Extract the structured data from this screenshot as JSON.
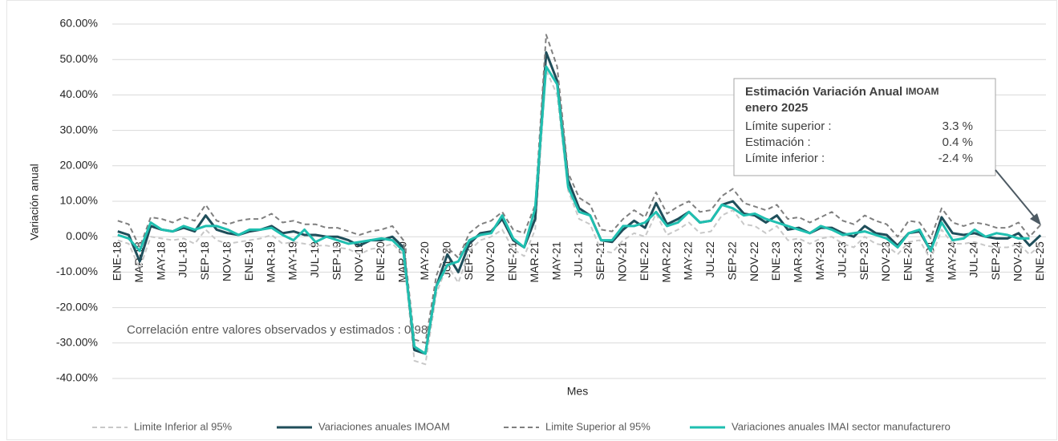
{
  "chart_data": {
    "type": "line",
    "y_label": "Variación anual",
    "x_label": "Mes",
    "categories": [
      "ENE-18",
      null,
      "MAR-18",
      null,
      "MAY-18",
      null,
      "JUL-18",
      null,
      "SEP-18",
      null,
      "NOV-18",
      null,
      "ENE-19",
      null,
      "MAR-19",
      null,
      "MAY-19",
      null,
      "JUL-19",
      null,
      "SEP-19",
      null,
      "NOV-19",
      null,
      "ENE-20",
      null,
      "MAR-20",
      null,
      "MAY-20",
      null,
      "JUL-20",
      null,
      "SEP-20",
      null,
      "NOV-20",
      null,
      "ENE-21",
      null,
      "MAR-21",
      null,
      "MAY-21",
      null,
      "JUL-21",
      null,
      "SEP-21",
      null,
      "NOV-21",
      null,
      "ENE-22",
      null,
      "MAR-22",
      null,
      "MAY-22",
      null,
      "JUL-22",
      null,
      "SEP-22",
      null,
      "NOV-22",
      null,
      "ENE-23",
      null,
      "MAR-23",
      null,
      "MAY-23",
      null,
      "JUL-23",
      null,
      "SEP-23",
      null,
      "NOV-23",
      null,
      "ENE-24",
      null,
      "MAR-24",
      null,
      "MAY-24",
      null,
      "JUL-24",
      null,
      "SEP-24",
      null,
      "NOV-24",
      null,
      "ENE-25"
    ],
    "series": [
      {
        "name": "Limite Inferior al 95%",
        "color": "#c8c8c8",
        "dashed": true,
        "width": 2,
        "values": [
          -1,
          -2,
          -9,
          0,
          -0.5,
          -1,
          -0.5,
          -2,
          2,
          -1,
          -2,
          -1.5,
          -1,
          -0.5,
          0.5,
          -2,
          -1.5,
          -2,
          -2.5,
          -2.5,
          -3,
          -3.5,
          -5,
          -3.5,
          -3,
          -2,
          -5,
          -35,
          -36,
          -16,
          -8,
          -13,
          -4,
          -1,
          0,
          2,
          -3.5,
          -5.5,
          2,
          47,
          40,
          13,
          5,
          3.5,
          -4,
          -4.5,
          -1,
          1,
          0,
          6.5,
          0.5,
          2,
          4,
          1,
          1.5,
          6,
          7.5,
          3.5,
          3,
          1,
          3,
          -1,
          -0.5,
          -2,
          -0.5,
          0,
          -2,
          -3,
          0,
          -2,
          -2.5,
          -5,
          -1.5,
          -1,
          -6.5,
          2,
          -2,
          -2,
          -1.5,
          -2.5,
          -3,
          -3,
          -2,
          -5,
          -2.4
        ]
      },
      {
        "name": "Variaciones anuales IMOAM",
        "color": "#1f4e5a",
        "dashed": false,
        "width": 3,
        "values": [
          1.5,
          0.5,
          -7,
          3,
          2,
          1.5,
          2.5,
          1.5,
          6,
          2,
          1,
          0.5,
          1.5,
          2,
          3,
          1,
          1.5,
          0.5,
          0.5,
          0,
          0,
          -1,
          -2.5,
          -1,
          -1,
          0,
          -3,
          -32,
          -33,
          -14,
          -5,
          -10,
          -2,
          1,
          1.5,
          5,
          -1,
          -3,
          5,
          52,
          44,
          16,
          8,
          6,
          -1,
          -1.5,
          2,
          4.5,
          2.5,
          9.5,
          3.5,
          5,
          7,
          4,
          4.5,
          9,
          10,
          6.5,
          6,
          4,
          6,
          2,
          2.5,
          1,
          2.5,
          2.5,
          1,
          0,
          3,
          1,
          0.5,
          -2.5,
          1,
          1.5,
          -4,
          5.5,
          1,
          0.5,
          1,
          0,
          -0.5,
          -0.5,
          1,
          -2.5,
          0.4
        ]
      },
      {
        "name": "Limite Superior al 95%",
        "color": "#7f7f7f",
        "dashed": true,
        "width": 2,
        "values": [
          4.5,
          3.5,
          -3,
          5.5,
          5,
          4,
          5.5,
          4.5,
          9,
          4.5,
          3.5,
          4.5,
          5,
          5,
          6.5,
          4,
          4.5,
          3.5,
          3.5,
          2.5,
          2.5,
          1.5,
          0.5,
          1.5,
          2,
          3,
          -1,
          -29,
          -30,
          -11,
          -3,
          -6,
          1,
          3.5,
          4.5,
          7,
          2,
          1,
          9,
          57,
          48,
          18,
          11,
          9,
          2,
          1.5,
          5,
          7.5,
          5.5,
          12.5,
          6.5,
          8.5,
          10,
          7,
          7.5,
          11.5,
          13.5,
          9.5,
          8.5,
          7.5,
          9,
          5,
          5.5,
          4,
          5.5,
          7,
          4.5,
          3.5,
          6,
          4.5,
          3.5,
          0,
          4.5,
          4,
          -0.5,
          8,
          4,
          3,
          4,
          3.5,
          2.5,
          2.5,
          4,
          0,
          3.3
        ]
      },
      {
        "name": "Variaciones anuales IMAI sector manufacturero",
        "color": "#1fbfb0",
        "dashed": false,
        "width": 3,
        "values": [
          0.5,
          -0.5,
          -4,
          4,
          2,
          1.5,
          3,
          2,
          3,
          3,
          2,
          0.5,
          2,
          2,
          2.5,
          0.5,
          -1,
          2,
          -1.5,
          0,
          -1,
          -2,
          -1.5,
          -1,
          -0.5,
          -1,
          -4,
          -31,
          -33,
          -14,
          -8,
          -7,
          -1,
          0.5,
          1,
          6,
          -0.5,
          -3,
          8,
          48,
          43,
          14,
          7,
          6,
          -1,
          -1,
          3,
          3,
          4,
          7,
          3,
          4,
          7,
          4,
          4.5,
          9,
          8,
          6,
          6.5,
          5,
          4,
          3,
          2,
          1,
          3,
          2,
          0.5,
          1,
          1.5,
          0.5,
          -0.5,
          -3,
          1,
          2,
          -4,
          4,
          -1,
          -0.5,
          2,
          0,
          1,
          0.5,
          -0.5,
          -0.5,
          null
        ]
      }
    ],
    "ylim": [
      -40,
      60
    ],
    "yticks": [
      {
        "value": -40,
        "label": "-40.00%"
      },
      {
        "value": -30,
        "label": "-30.00%"
      },
      {
        "value": -20,
        "label": "-20.00%"
      },
      {
        "value": -10,
        "label": "-10.00%"
      },
      {
        "value": 0,
        "label": "0.00%"
      },
      {
        "value": 10,
        "label": "10.00%"
      },
      {
        "value": 20,
        "label": "20.00%"
      },
      {
        "value": 30,
        "label": "30.00%"
      },
      {
        "value": 40,
        "label": "40.00%"
      },
      {
        "value": 50,
        "label": "50.00%"
      },
      {
        "value": 60,
        "label": "60.00%"
      }
    ],
    "grid": true,
    "legend": "bottom",
    "correlation_note": "Correlación entre valores observados y estimados :  0.98",
    "annotation": {
      "title": "Estimación Variación Anual",
      "title_sub": "IMOAM",
      "subtitle": "enero 2025",
      "rows": [
        {
          "label": "Límite superior :",
          "value": "3.3 %"
        },
        {
          "label": "Estimación :",
          "value": "0.4 %"
        },
        {
          "label": "Límite inferior :",
          "value": "-2.4 %"
        }
      ]
    }
  }
}
